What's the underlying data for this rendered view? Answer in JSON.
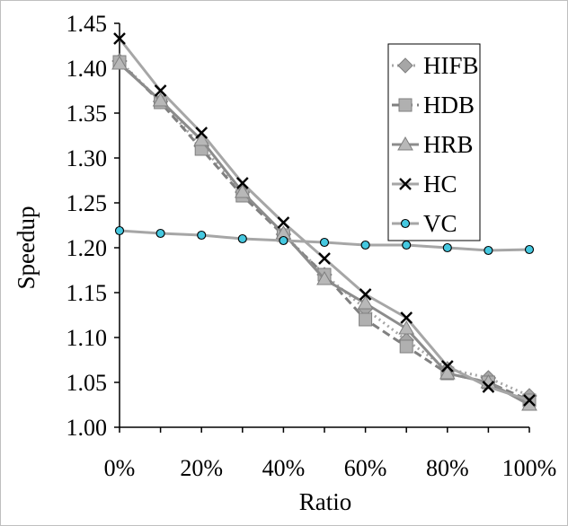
{
  "chart_data": {
    "type": "line",
    "xlabel": "Ratio",
    "ylabel": "Speedup",
    "x": [
      "0%",
      "10%",
      "20%",
      "30%",
      "40%",
      "50%",
      "60%",
      "70%",
      "80%",
      "90%",
      "100%"
    ],
    "x_tick_labels": [
      "0%",
      "20%",
      "40%",
      "60%",
      "80%",
      "100%"
    ],
    "y_tick_labels": [
      "1.00",
      "1.05",
      "1.10",
      "1.15",
      "1.20",
      "1.25",
      "1.30",
      "1.35",
      "1.40",
      "1.45"
    ],
    "ylim": [
      1.0,
      1.45
    ],
    "grid": false,
    "legend_position": "top-right",
    "series": [
      {
        "name": "HIFB",
        "marker": "diamond",
        "line": "dotted",
        "color": "#a6a6a6",
        "values": [
          1.408,
          1.363,
          1.313,
          1.262,
          1.215,
          1.17,
          1.132,
          1.097,
          1.065,
          1.055,
          1.035
        ]
      },
      {
        "name": "HDB",
        "marker": "square",
        "line": "dashed",
        "color": "#808080",
        "values": [
          1.407,
          1.362,
          1.31,
          1.258,
          1.214,
          1.17,
          1.12,
          1.09,
          1.06,
          1.05,
          1.03
        ]
      },
      {
        "name": "HRB",
        "marker": "triangle",
        "line": "solid",
        "color": "#8c8c8c",
        "values": [
          1.405,
          1.364,
          1.32,
          1.262,
          1.216,
          1.165,
          1.138,
          1.11,
          1.06,
          1.05,
          1.025
        ]
      },
      {
        "name": "HC",
        "marker": "x",
        "line": "solid",
        "color": "#a6a6a6",
        "values": [
          1.433,
          1.375,
          1.328,
          1.272,
          1.228,
          1.188,
          1.148,
          1.122,
          1.068,
          1.045,
          1.03
        ]
      },
      {
        "name": "VC",
        "marker": "circle",
        "line": "solid",
        "color": "#a6a6a6",
        "values": [
          1.219,
          1.216,
          1.214,
          1.21,
          1.208,
          1.206,
          1.203,
          1.203,
          1.2,
          1.197,
          1.198
        ]
      }
    ]
  }
}
